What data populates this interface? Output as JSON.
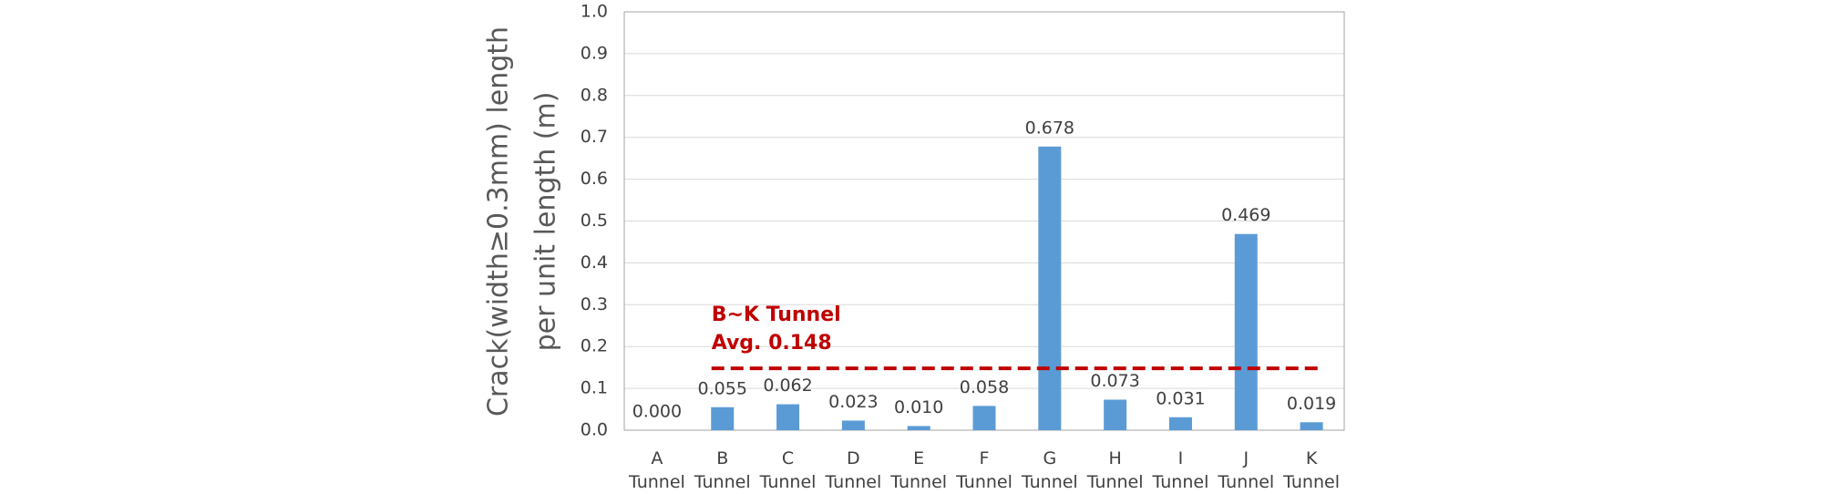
{
  "chart_data": {
    "type": "bar",
    "y_label": [
      "Crack(width≥0.3mm) length",
      "per unit length  (m)"
    ],
    "categories": [
      "A\nTunnel",
      "B\nTunnel",
      "C\nTunnel",
      "D\nTunnel",
      "E\nTunnel",
      "F\nTunnel",
      "G\nTunnel",
      "H\nTunnel",
      "I\nTunnel",
      "J\nTunnel",
      "K\nTunnel"
    ],
    "values": [
      0,
      0.055,
      0.062,
      0.023,
      0.01,
      0.058,
      0.678,
      0.073,
      0.031,
      0.469,
      0.019
    ],
    "value_labels": [
      "0.000",
      "0.055",
      "0.062",
      "0.023",
      "0.010",
      "0.058",
      "0.678",
      "0.073",
      "0.031",
      "0.469",
      "0.019"
    ],
    "color": "#5b9bd5",
    "ylim": [
      0,
      1
    ],
    "yticks": [
      {
        "value": 0,
        "label": "0.0"
      },
      0.1,
      0.2,
      0.3,
      0.4,
      0.5,
      0.6,
      0.7,
      0.8,
      0.9,
      {
        "value": 1,
        "label": "1.0"
      }
    ],
    "grid": true,
    "average": {
      "title": "B~K Tunnel",
      "text": "Avg. 0.148",
      "value": 0.148,
      "color": "#c00000"
    }
  }
}
